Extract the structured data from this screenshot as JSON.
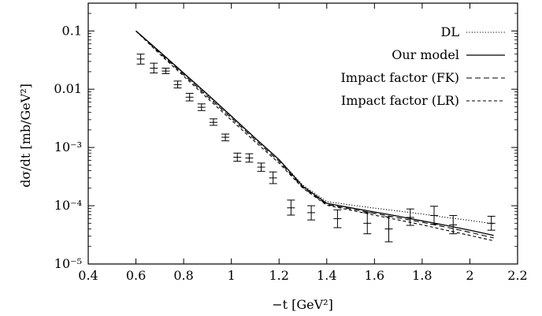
{
  "chart_data": {
    "type": "line",
    "xlabel": "−t [GeV²]",
    "ylabel": "dσ/dt [mb/GeV²]",
    "xlim": [
      0.4,
      2.2
    ],
    "ylim": [
      1e-05,
      0.3
    ],
    "yscale": "log",
    "grid": false,
    "legend_position": "top-right",
    "x_ticks": [
      {
        "value": 0.4,
        "label": "0.4"
      },
      {
        "value": 0.6,
        "label": "0.6"
      },
      {
        "value": 0.8,
        "label": "0.8"
      },
      {
        "value": 1.0,
        "label": "1"
      },
      {
        "value": 1.2,
        "label": "1.2"
      },
      {
        "value": 1.4,
        "label": "1.4"
      },
      {
        "value": 1.6,
        "label": "1.6"
      },
      {
        "value": 1.8,
        "label": "1.8"
      },
      {
        "value": 2.0,
        "label": "2"
      },
      {
        "value": 2.2,
        "label": "2.2"
      }
    ],
    "y_ticks": [
      {
        "value": 0.1,
        "label": "0.1"
      },
      {
        "value": 0.01,
        "label": "0.01"
      },
      {
        "value": 0.001,
        "label": "10⁻³"
      },
      {
        "value": 0.0001,
        "label": "10⁻⁴"
      },
      {
        "value": 1e-05,
        "label": "10⁻⁵"
      }
    ],
    "series": [
      {
        "name": "DL",
        "style": "dotted",
        "x": [
          0.6,
          0.7,
          0.8,
          0.9,
          1.0,
          1.1,
          1.2,
          1.3,
          1.4,
          1.5,
          1.6,
          1.7,
          1.8,
          1.9,
          2.0,
          2.1
        ],
        "y": [
          0.1,
          0.043,
          0.0185,
          0.0079,
          0.00335,
          0.00142,
          0.00062,
          0.000225,
          0.000118,
          0.000103,
          9.1e-05,
          8.1e-05,
          7.2e-05,
          6.3e-05,
          5.6e-05,
          4.9e-05
        ]
      },
      {
        "name": "Our model",
        "style": "solid",
        "x": [
          0.6,
          0.7,
          0.8,
          0.9,
          1.0,
          1.1,
          1.2,
          1.3,
          1.4,
          1.5,
          1.6,
          1.7,
          1.8,
          1.9,
          2.0,
          2.1
        ],
        "y": [
          0.1,
          0.044,
          0.019,
          0.0082,
          0.00345,
          0.00145,
          0.00062,
          0.000215,
          0.00011,
          9.2e-05,
          7.8e-05,
          6.6e-05,
          5.5e-05,
          4.6e-05,
          3.8e-05,
          3.1e-05
        ]
      },
      {
        "name": "Impact factor (FK)",
        "style": "dashed",
        "x": [
          0.6,
          0.7,
          0.8,
          0.9,
          1.0,
          1.1,
          1.2,
          1.3,
          1.4,
          1.5,
          1.6,
          1.7,
          1.8,
          1.9,
          2.0,
          2.1
        ],
        "y": [
          0.1,
          0.042,
          0.0178,
          0.0075,
          0.0032,
          0.00135,
          0.00058,
          0.000205,
          0.000105,
          8.8e-05,
          7.4e-05,
          6.2e-05,
          5.2e-05,
          4.3e-05,
          3.5e-05,
          2.8e-05
        ]
      },
      {
        "name": "Impact factor (LR)",
        "style": "shortdash",
        "x": [
          0.6,
          0.7,
          0.8,
          0.9,
          1.0,
          1.1,
          1.2,
          1.3,
          1.4,
          1.5,
          1.6,
          1.7,
          1.8,
          1.9,
          2.0,
          2.1
        ],
        "y": [
          0.1,
          0.04,
          0.0168,
          0.007,
          0.00295,
          0.00125,
          0.00054,
          0.0002,
          0.000102,
          8.4e-05,
          6.9e-05,
          5.7e-05,
          4.7e-05,
          3.8e-05,
          3.1e-05,
          2.5e-05
        ]
      }
    ],
    "data_points": [
      {
        "x": 0.62,
        "y": 0.033,
        "ylow": 0.027,
        "yhigh": 0.04
      },
      {
        "x": 0.675,
        "y": 0.023,
        "ylow": 0.019,
        "yhigh": 0.028
      },
      {
        "x": 0.725,
        "y": 0.0205,
        "ylow": 0.0185,
        "yhigh": 0.023
      },
      {
        "x": 0.775,
        "y": 0.012,
        "ylow": 0.0105,
        "yhigh": 0.0138
      },
      {
        "x": 0.825,
        "y": 0.0073,
        "ylow": 0.0063,
        "yhigh": 0.0085
      },
      {
        "x": 0.875,
        "y": 0.0049,
        "ylow": 0.0043,
        "yhigh": 0.0056
      },
      {
        "x": 0.925,
        "y": 0.0027,
        "ylow": 0.0024,
        "yhigh": 0.0031
      },
      {
        "x": 0.975,
        "y": 0.0015,
        "ylow": 0.0013,
        "yhigh": 0.0017
      },
      {
        "x": 1.025,
        "y": 0.00068,
        "ylow": 0.00058,
        "yhigh": 0.0008
      },
      {
        "x": 1.075,
        "y": 0.00066,
        "ylow": 0.00056,
        "yhigh": 0.00078
      },
      {
        "x": 1.125,
        "y": 0.00046,
        "ylow": 0.00039,
        "yhigh": 0.00054
      },
      {
        "x": 1.175,
        "y": 0.0003,
        "ylow": 0.00024,
        "yhigh": 0.00038
      },
      {
        "x": 1.25,
        "y": 9.2e-05,
        "ylow": 6.9e-05,
        "yhigh": 0.000125
      },
      {
        "x": 1.335,
        "y": 7.6e-05,
        "ylow": 5.7e-05,
        "yhigh": 0.0001
      },
      {
        "x": 1.445,
        "y": 6e-05,
        "ylow": 4.2e-05,
        "yhigh": 8.5e-05
      },
      {
        "x": 1.57,
        "y": 5e-05,
        "ylow": 3.3e-05,
        "yhigh": 7.6e-05
      },
      {
        "x": 1.66,
        "y": 4e-05,
        "ylow": 2.4e-05,
        "yhigh": 6.5e-05
      },
      {
        "x": 1.75,
        "y": 6.3e-05,
        "ylow": 4.6e-05,
        "yhigh": 8.8e-05
      },
      {
        "x": 1.85,
        "y": 6.8e-05,
        "ylow": 4.8e-05,
        "yhigh": 9.8e-05
      },
      {
        "x": 1.93,
        "y": 4.7e-05,
        "ylow": 3.3e-05,
        "yhigh": 6.8e-05
      },
      {
        "x": 2.09,
        "y": 5e-05,
        "ylow": 3.8e-05,
        "yhigh": 6.6e-05
      }
    ]
  }
}
